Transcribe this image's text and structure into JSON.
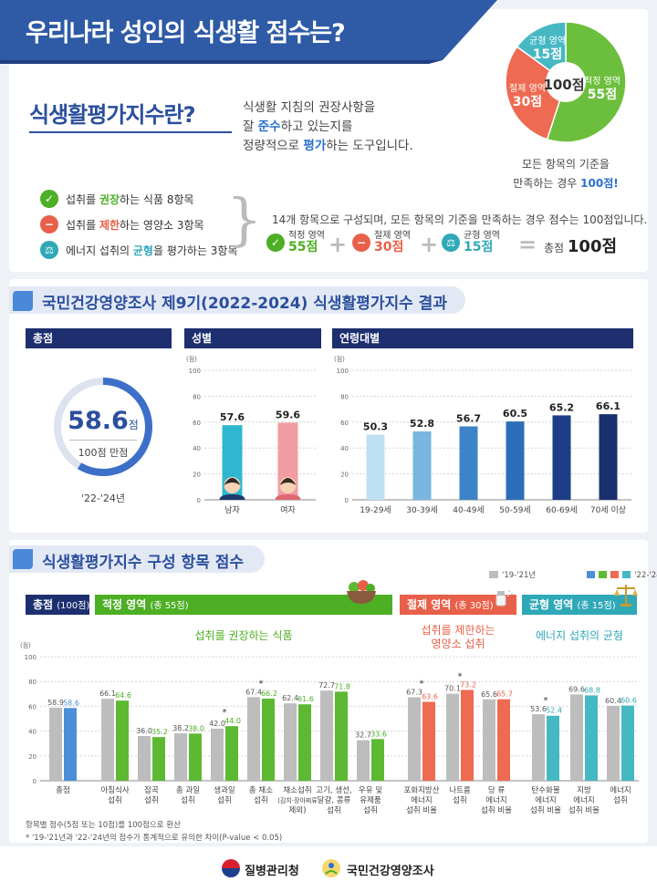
{
  "header": {
    "title": "우리나라 성인의 식생활 점수는?"
  },
  "definition": {
    "title": "식생활평가지수란?",
    "line1_pre": "식생활 지침의 권장사항을",
    "line2_pre": "잘 ",
    "line2_bold": "준수",
    "line2_post": "하고 있는지를",
    "line3_pre": "정량적으로 ",
    "line3_bold": "평가",
    "line3_post": "하는 도구입니다."
  },
  "legend": [
    {
      "pre": "섭취를 ",
      "key": "권장",
      "post": "하는 식품",
      "count": " 8항목",
      "key_color": "#4caf24",
      "icon": "check-icon",
      "glyph": "✓"
    },
    {
      "pre": "섭취를 ",
      "key": "제한",
      "post": "하는 영양소",
      "count": " 3항목",
      "key_color": "#e8604a",
      "icon": "minus-icon",
      "glyph": "−"
    },
    {
      "pre": "에너지 섭취의 ",
      "key": "균형",
      "post": "을 평가하는",
      "count": " 3항목",
      "key_color": "#2fa8b8",
      "icon": "scale-icon",
      "glyph": "⚖"
    }
  ],
  "composition": {
    "desc": "14개 항목으로 구성되며, 모든 항목의 기준을 만족하는 경우 점수는 100점입니다.",
    "items": [
      {
        "name": "적정 영역",
        "points": "55점",
        "color": "#4caf24"
      },
      {
        "name": "절제 영역",
        "points": "30점",
        "color": "#e8604a"
      },
      {
        "name": "균형 영역",
        "points": "15점",
        "color": "#2fa8b8"
      }
    ],
    "plus": "+",
    "equals": "=",
    "total_label": "총점 ",
    "total_value": "100점"
  },
  "pie": {
    "center": "100점",
    "slices": [
      {
        "name": "적정 영역",
        "value": 55,
        "label": "55점",
        "color": "#6cbf3c"
      },
      {
        "name": "절제 영역",
        "value": 30,
        "label": "30점",
        "color": "#ef6a52"
      },
      {
        "name": "균형 영역",
        "value": 15,
        "label": "15점",
        "color": "#46b8c4"
      }
    ],
    "note1": "모든 항목의 기준을",
    "note2_pre": "만족하는 경우 ",
    "note2_bold": "100점!"
  },
  "results": {
    "title": "국민건강영양조사 제9기(2022-2024) 식생활평가지수 결과",
    "total_panel": {
      "header": "총점",
      "score": "58.6",
      "unit": "점",
      "sub": "100점 만점",
      "period": "'22-'24년",
      "value": 58.6,
      "max": 100
    },
    "sex_panel": {
      "header": "성별",
      "unit": "(점)"
    },
    "age_panel": {
      "header": "연령대별",
      "unit": "(점)"
    }
  },
  "components": {
    "title": "식생활평가지수 구성 항목 점수",
    "legend_old": "'19-'21년",
    "legend_new": "'22-'24년",
    "total_header": "총점",
    "total_header_sub": "(100점)",
    "adequacy_header": "적정 영역",
    "adequacy_header_sub": "(총 55점)",
    "adequacy_sub": "섭취를 권장하는 식품",
    "moderation_header": "절제 영역",
    "moderation_header_sub": "(총 30점)",
    "moderation_sub1": "섭취를 제한하는",
    "moderation_sub2": "영양소 섭취",
    "balance_header": "균형 영역",
    "balance_header_sub": "(총 15점)",
    "balance_sub": "에너지 섭취의 균형",
    "unit": "(점)",
    "note1": "항목별 점수(5점 또는 10점)를 100점으로 환산",
    "note2": "* '19-'21년과 '22-'24년의 점수가 통계적으로 유의한 차이(P-value < 0.05)"
  },
  "footer": {
    "agency1": "질병관리청",
    "agency2": "국민건강영양조사"
  },
  "chart_data": [
    {
      "type": "bar",
      "title": "성별",
      "ylabel": "(점)",
      "ylim": [
        0,
        100
      ],
      "yticks": [
        0,
        20,
        40,
        60,
        80,
        100
      ],
      "categories": [
        "남자",
        "여자"
      ],
      "values": [
        57.6,
        59.6
      ],
      "colors": [
        "#2fb7cf",
        "#f29ca3"
      ]
    },
    {
      "type": "bar",
      "title": "연령대별",
      "ylabel": "(점)",
      "ylim": [
        0,
        100
      ],
      "yticks": [
        0,
        20,
        40,
        60,
        80,
        100
      ],
      "categories": [
        "19-29세",
        "30-39세",
        "40-49세",
        "50-59세",
        "60-69세",
        "70세 이상"
      ],
      "values": [
        50.3,
        52.8,
        56.7,
        60.5,
        65.2,
        66.1
      ],
      "colors": [
        "#bfe0f2",
        "#79b6e0",
        "#3d83c9",
        "#2c6fb8",
        "#1d3d88",
        "#18306e"
      ]
    },
    {
      "type": "bar",
      "title": "식생활평가지수 구성 항목 점수",
      "ylabel": "(점)",
      "ylim": [
        0,
        100
      ],
      "yticks": [
        0,
        20,
        40,
        60,
        80,
        100
      ],
      "categories": [
        {
          "label": [
            "총점"
          ],
          "group": "total",
          "sig": false
        },
        {
          "label": [
            "아침식사",
            "섭취"
          ],
          "group": "adequacy",
          "sig": false
        },
        {
          "label": [
            "잡곡",
            "섭취"
          ],
          "group": "adequacy",
          "sig": false
        },
        {
          "label": [
            "총 과일",
            "섭취"
          ],
          "group": "adequacy",
          "sig": false
        },
        {
          "label": [
            "생과일",
            "섭취"
          ],
          "group": "adequacy",
          "sig": true
        },
        {
          "label": [
            "총 채소",
            "섭취"
          ],
          "group": "adequacy",
          "sig": true
        },
        {
          "label": [
            "채소섭취",
            "(김치·장아찌류",
            "제외)"
          ],
          "group": "adequacy",
          "sig": false
        },
        {
          "label": [
            "고기, 생선,",
            "달걀, 콩류",
            "섭취"
          ],
          "group": "adequacy",
          "sig": false
        },
        {
          "label": [
            "우유 및",
            "유제품",
            "섭취"
          ],
          "group": "adequacy",
          "sig": false
        },
        {
          "label": [
            "포화지방산",
            "에너지",
            "섭취 비율"
          ],
          "group": "moderation",
          "sig": true
        },
        {
          "label": [
            "나트륨",
            "섭취"
          ],
          "group": "moderation",
          "sig": true
        },
        {
          "label": [
            "당 류",
            "에너지",
            "섭취 비율"
          ],
          "group": "moderation",
          "sig": false
        },
        {
          "label": [
            "탄수화물",
            "에너지",
            "섭취 비율"
          ],
          "group": "balance",
          "sig": true
        },
        {
          "label": [
            "지방",
            "에너지",
            "섭취 비율"
          ],
          "group": "balance",
          "sig": false
        },
        {
          "label": [
            "에너지",
            "섭취"
          ],
          "group": "balance",
          "sig": false
        }
      ],
      "series": [
        {
          "name": "'19-'21년",
          "values": [
            58.9,
            66.1,
            36.0,
            38.2,
            42.0,
            67.4,
            62.4,
            72.7,
            32.7,
            67.3,
            70.1,
            65.6,
            53.6,
            69.6,
            60.4
          ],
          "color": "#bdbdbd"
        },
        {
          "name": "'22-'24년",
          "values": [
            58.6,
            64.6,
            35.2,
            38.0,
            44.0,
            66.2,
            61.6,
            71.8,
            33.6,
            63.6,
            73.2,
            65.7,
            52.4,
            68.8,
            60.6
          ]
        }
      ],
      "group_colors": {
        "total": "#4a8fd8",
        "adequacy": "#5db832",
        "moderation": "#ef6a52",
        "balance": "#46b8c4"
      },
      "value_colors": {
        "total": "#4a8fd8",
        "adequacy": "#4caf24",
        "moderation": "#e8604a",
        "balance": "#2fa8b8"
      }
    }
  ]
}
